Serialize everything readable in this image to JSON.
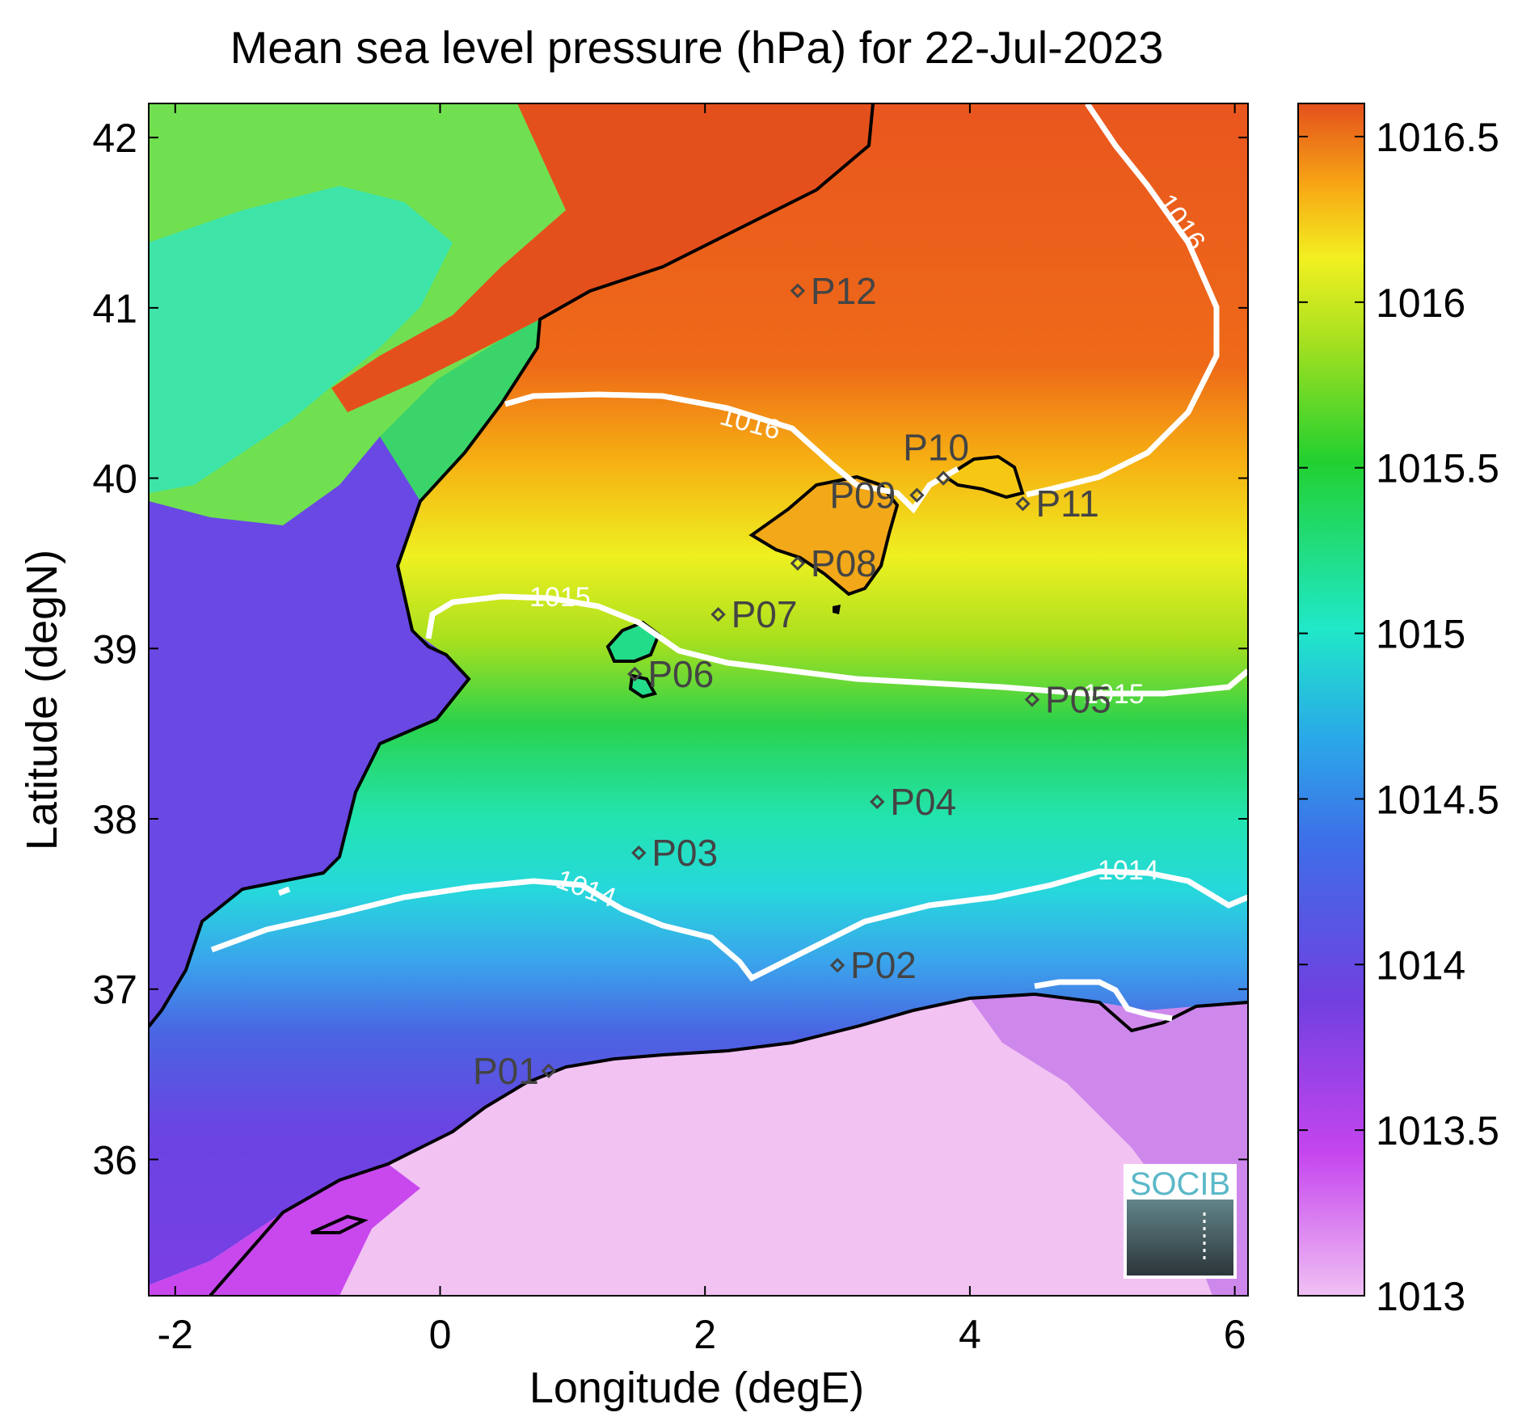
{
  "title": "Mean sea level pressure (hPa) for 22-Jul-2023",
  "map": {
    "xlabel": "Longitude (degE)",
    "ylabel": "Latitude (degN)",
    "x_ticks": [
      "-2",
      "0",
      "2",
      "4",
      "6"
    ],
    "y_ticks": [
      "42",
      "41",
      "40",
      "39",
      "38",
      "37",
      "36"
    ],
    "lon_range": [
      -2.2,
      6.1
    ],
    "lat_range": [
      35.2,
      42.2
    ]
  },
  "colorbar": {
    "ticks": [
      "1016.5",
      "1016",
      "1015.5",
      "1015",
      "1014.5",
      "1014",
      "1013.5",
      "1013"
    ],
    "range": [
      1013,
      1016.6
    ]
  },
  "contours": [
    {
      "label": "1016"
    },
    {
      "label": "1016"
    },
    {
      "label": "1015"
    },
    {
      "label": "1015"
    },
    {
      "label": "1014"
    },
    {
      "label": "1014"
    }
  ],
  "stations": [
    {
      "id": "P01",
      "lon": 0.82,
      "lat": 36.52
    },
    {
      "id": "P02",
      "lon": 3.0,
      "lat": 37.14
    },
    {
      "id": "P03",
      "lon": 1.5,
      "lat": 37.8
    },
    {
      "id": "P04",
      "lon": 3.3,
      "lat": 38.1
    },
    {
      "id": "P05",
      "lon": 4.47,
      "lat": 38.7
    },
    {
      "id": "P06",
      "lon": 1.47,
      "lat": 38.85
    },
    {
      "id": "P07",
      "lon": 2.1,
      "lat": 39.2
    },
    {
      "id": "P08",
      "lon": 2.7,
      "lat": 39.5
    },
    {
      "id": "P09",
      "lon": 3.6,
      "lat": 39.9
    },
    {
      "id": "P10",
      "lon": 3.8,
      "lat": 40.0
    },
    {
      "id": "P11",
      "lon": 4.4,
      "lat": 39.85
    },
    {
      "id": "P12",
      "lon": 2.7,
      "lat": 41.1
    }
  ],
  "logo": {
    "text": "SOCIB"
  }
}
